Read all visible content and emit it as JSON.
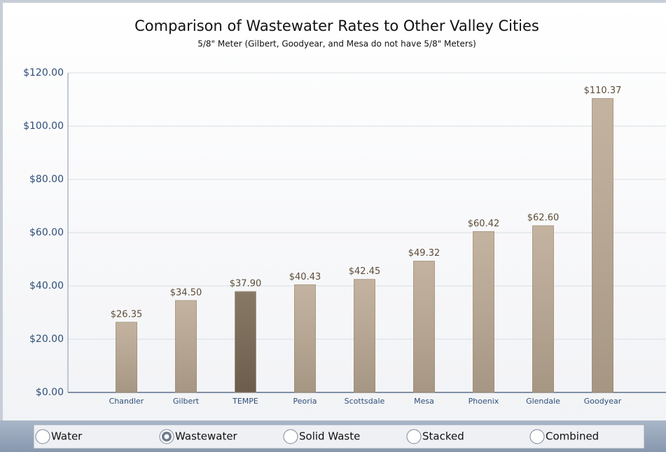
{
  "chart_data": {
    "type": "bar",
    "title": "Comparison of Wastewater Rates to Other Valley Cities",
    "subtitle": "5/8\" Meter (Gilbert, Goodyear, and Mesa do not have 5/8\" Meters)",
    "categories": [
      "Chandler",
      "Gilbert",
      "TEMPE",
      "Peoria",
      "Scottsdale",
      "Mesa",
      "Phoenix",
      "Glendale",
      "Goodyear"
    ],
    "values": [
      26.35,
      34.5,
      37.9,
      40.43,
      42.45,
      49.32,
      60.42,
      62.6,
      110.37
    ],
    "value_labels": [
      "$26.35",
      "$34.50",
      "$37.90",
      "$40.43",
      "$42.45",
      "$49.32",
      "$60.42",
      "$62.60",
      "$110.37"
    ],
    "colors": [
      "#bcaa95",
      "#bcaa95",
      "#7a6955",
      "#bcaa95",
      "#bcaa95",
      "#bcaa95",
      "#bcaa95",
      "#bcaa95",
      "#bcaa95"
    ],
    "ylim": [
      0,
      120
    ],
    "yticks": [
      {
        "value": 0,
        "label": "$0.00"
      },
      {
        "value": 20,
        "label": "$20.00"
      },
      {
        "value": 40,
        "label": "$40.00"
      },
      {
        "value": 60,
        "label": "$60.00"
      },
      {
        "value": 80,
        "label": "$80.00"
      },
      {
        "value": 100,
        "label": "$100.00"
      },
      {
        "value": 120,
        "label": "$120.00"
      }
    ],
    "grid": true
  },
  "controls": [
    {
      "label": "Water",
      "checked": false
    },
    {
      "label": "Wastewater",
      "checked": true
    },
    {
      "label": "Solid Waste",
      "checked": false
    },
    {
      "label": "Stacked",
      "checked": false
    },
    {
      "label": "Combined",
      "checked": false
    }
  ]
}
